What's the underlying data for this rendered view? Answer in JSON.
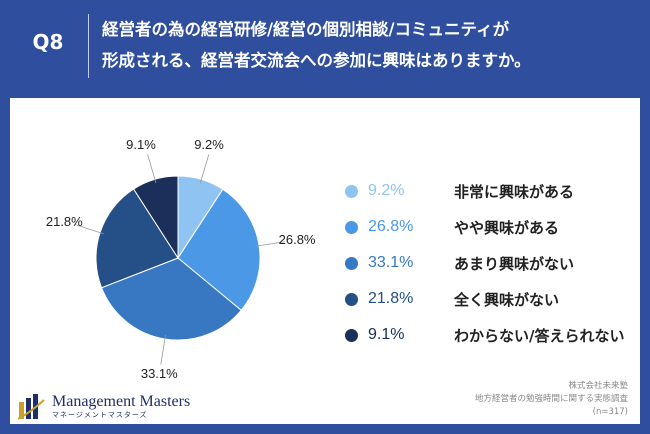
{
  "header": {
    "q_label": "Q8",
    "question_line1": "経営者の為の経営研修/経営の個別相談/コミュニティが",
    "question_line2": "形成される、経営者交流会への参加に興味はありますか。"
  },
  "colors": {
    "header_bg": "#2f4f9e",
    "slice_colors": [
      "#8ec3f2",
      "#4a98e6",
      "#3878c2",
      "#254f87",
      "#1a2f5a"
    ]
  },
  "chart_data": {
    "type": "pie",
    "title": "経営者の為の経営研修/経営の個別相談/コミュニティが形成される、経営者交流会への参加に興味はありますか。",
    "categories": [
      "非常に興味がある",
      "やや興味がある",
      "あまり興味がない",
      "全く興味がない",
      "わからない/答えられない"
    ],
    "values": [
      9.2,
      26.8,
      33.1,
      21.8,
      9.1
    ],
    "value_labels": [
      "9.2%",
      "26.8%",
      "33.1%",
      "21.8%",
      "9.1%"
    ],
    "start": "12 o'clock",
    "direction": "clockwise",
    "legend_position": "right"
  },
  "footer": {
    "company": "株式会社未来塾",
    "survey": "地方経営者の勉強時間に関する実態調査",
    "sample": "(n=317)"
  },
  "logo": {
    "name": "Management Masters",
    "sub": "マネージメントマスターズ"
  }
}
